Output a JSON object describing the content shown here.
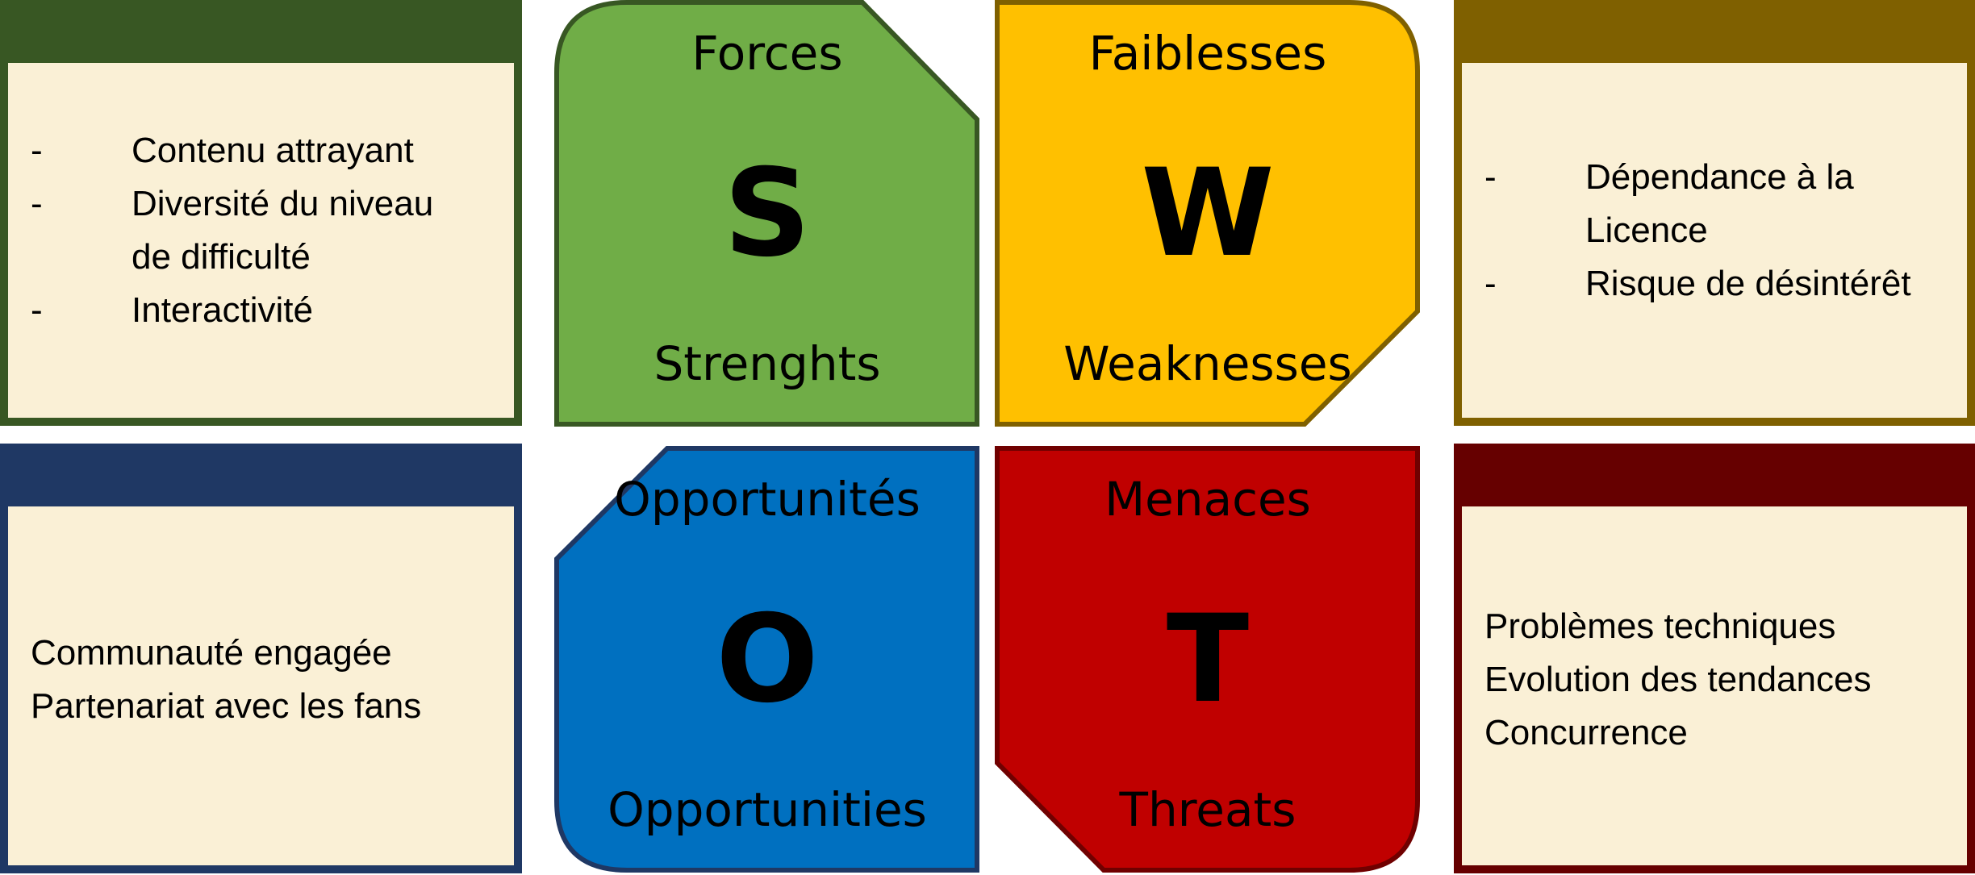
{
  "quadrants": {
    "strengths": {
      "french_title": "Forces",
      "letter": "S",
      "english_title": "Strenghts",
      "fill": "#70ad47",
      "border": "#385723"
    },
    "weaknesses": {
      "french_title": "Faiblesses",
      "letter": "W",
      "english_title": "Weaknesses",
      "fill": "#ffc000",
      "border": "#7f6000"
    },
    "opportunities": {
      "french_title": "Opportunités",
      "letter": "O",
      "english_title": "Opportunities",
      "fill": "#0070c0",
      "border": "#1f3864"
    },
    "threats": {
      "french_title": "Menaces",
      "letter": "T",
      "english_title": "Threats",
      "fill": "#c00000",
      "border": "#700000"
    }
  },
  "cards": {
    "strengths": {
      "band_color": "#385723",
      "items": [
        "Contenu attrayant",
        "Diversité du niveau de difficulté",
        "Interactivité"
      ]
    },
    "weaknesses": {
      "band_color": "#7f6000",
      "items": [
        "Dépendance à la Licence",
        "Risque de désintérêt"
      ]
    },
    "opportunities": {
      "band_color": "#1f3864",
      "items": [
        "Communauté engagée",
        "Partenariat avec les fans"
      ]
    },
    "threats": {
      "band_color": "#660000",
      "items": [
        "Problèmes techniques",
        "Evolution des tendances",
        "Concurrence"
      ]
    }
  },
  "card_background": "#faf0d6",
  "bullet_marker": "-"
}
